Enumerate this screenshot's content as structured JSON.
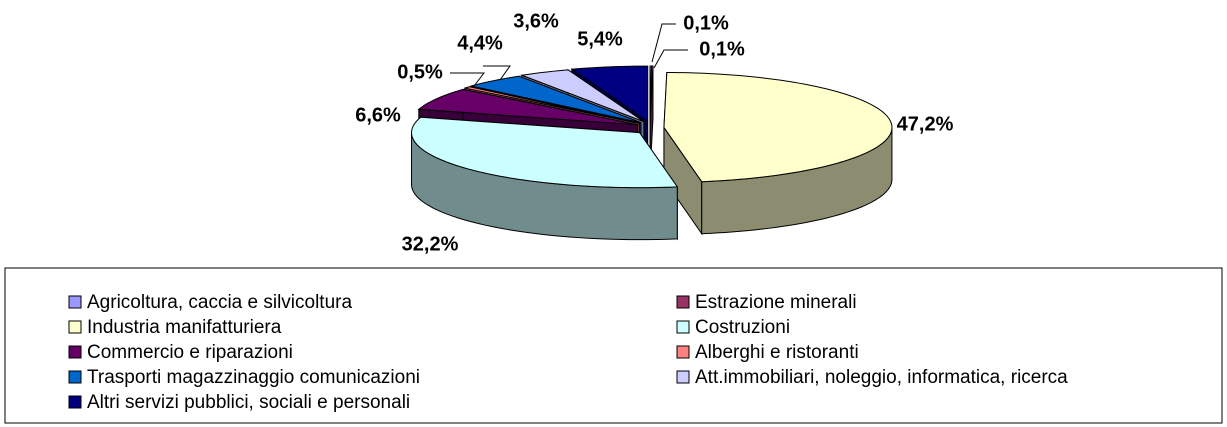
{
  "chart_data": {
    "type": "pie",
    "categories": [
      "Agricoltura, caccia e silvicoltura",
      "Estrazione minerali",
      "Industria manifatturiera",
      "Costruzioni",
      "Commercio e riparazioni",
      "Alberghi e ristoranti",
      "Trasporti magazzinaggio comunicazioni",
      "Att.immobiliari, noleggio, informatica, ricerca",
      "Altri servizi pubblici, sociali e personali"
    ],
    "values": [
      0.1,
      0.1,
      47.2,
      32.2,
      6.6,
      0.5,
      4.4,
      3.6,
      5.4
    ],
    "value_labels": [
      "0,1%",
      "0,1%",
      "47,2%",
      "32,2%",
      "6,6%",
      "0,5%",
      "4,4%",
      "3,6%",
      "5,4%"
    ],
    "colors": [
      "#9999ff",
      "#993366",
      "#ffffcc",
      "#ccffff",
      "#660066",
      "#ff8080",
      "#0066cc",
      "#ccccff",
      "#000080"
    ],
    "legend": "bottom"
  }
}
